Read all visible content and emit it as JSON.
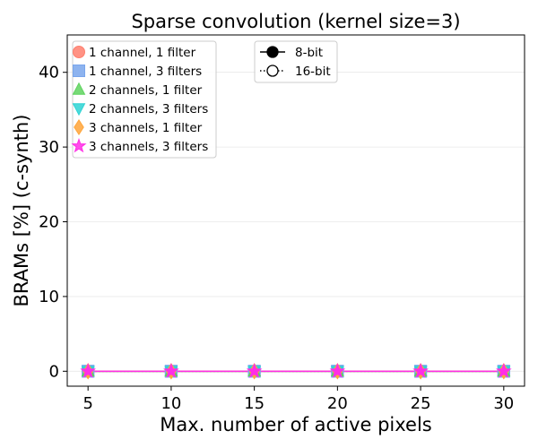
{
  "chart_data": {
    "type": "line",
    "title": "Sparse convolution (kernel size=3)",
    "xlabel": "Max. number of active pixels",
    "ylabel": "BRAMs [%] (c-synth)",
    "x": [
      5,
      10,
      15,
      20,
      25,
      30
    ],
    "xticks": [
      "5",
      "10",
      "15",
      "20",
      "25",
      "30"
    ],
    "yticks": [
      "0",
      "10",
      "20",
      "30",
      "40"
    ],
    "xlim": [
      3.75,
      31.25
    ],
    "ylim": [
      -2,
      45
    ],
    "grid": "horizontal",
    "legend_placement": "top-left",
    "style_legend_placement": "top-center",
    "series": [
      {
        "name": "1 channel, 1 filter",
        "marker": "circle",
        "color": "#ff7f6e",
        "values_8bit": [
          0,
          0,
          0,
          0,
          0,
          0
        ],
        "values_16bit": [
          0,
          0,
          0,
          0,
          0,
          0
        ]
      },
      {
        "name": "1 channel, 3 filters",
        "marker": "square",
        "color": "#79a6ec",
        "values_8bit": [
          0,
          0,
          0,
          0,
          0,
          0
        ],
        "values_16bit": [
          0,
          0,
          0,
          0,
          0,
          0
        ]
      },
      {
        "name": "2 channels, 1 filter",
        "marker": "triangle-up",
        "color": "#5fd35f",
        "values_8bit": [
          0,
          0,
          0,
          0,
          0,
          0
        ],
        "values_16bit": [
          0,
          0,
          0,
          0,
          0,
          0
        ]
      },
      {
        "name": "2 channels, 3 filters",
        "marker": "triangle-down",
        "color": "#2ed4d4",
        "values_8bit": [
          0,
          0,
          0,
          0,
          0,
          0
        ],
        "values_16bit": [
          0,
          0,
          0,
          0,
          0,
          0
        ]
      },
      {
        "name": "3 channels, 1 filter",
        "marker": "diamond",
        "color": "#ffa53a",
        "values_8bit": [
          0,
          0,
          0,
          0,
          0,
          0
        ],
        "values_16bit": [
          0,
          0,
          0,
          0,
          0,
          0
        ]
      },
      {
        "name": "3 channels, 3 filters",
        "marker": "star",
        "color": "#ff2ee6",
        "values_8bit": [
          0,
          0,
          0,
          0,
          0,
          0
        ],
        "values_16bit": [
          0,
          0,
          0,
          0,
          0,
          0
        ]
      }
    ],
    "style_legend": [
      {
        "name": "8-bit",
        "line": "solid",
        "marker": "filled-circle"
      },
      {
        "name": "16-bit",
        "line": "dotted",
        "marker": "open-circle"
      }
    ]
  }
}
